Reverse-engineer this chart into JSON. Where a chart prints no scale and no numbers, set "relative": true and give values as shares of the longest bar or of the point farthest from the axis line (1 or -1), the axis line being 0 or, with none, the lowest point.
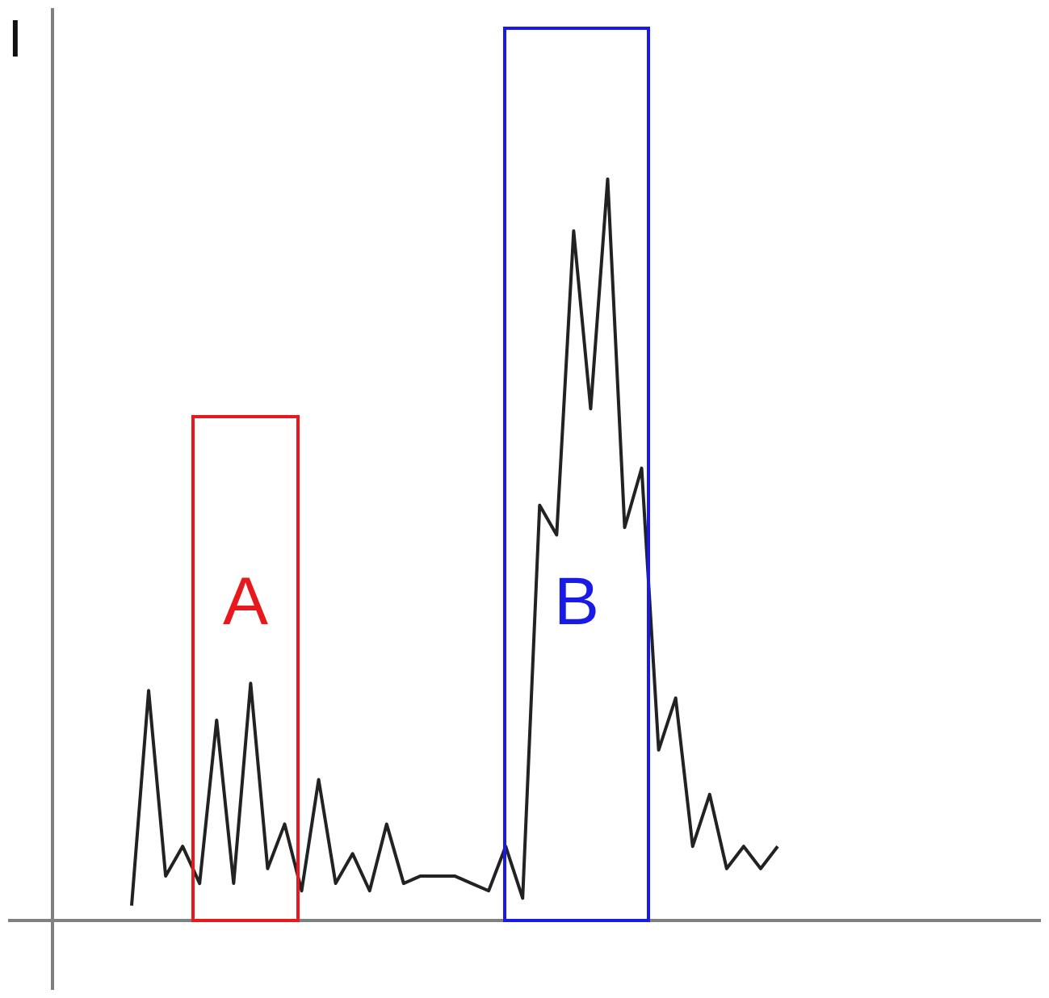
{
  "chart_data": {
    "type": "line",
    "ylabel": "I",
    "relative": true,
    "legend": false,
    "marker": "none",
    "tick_labels": false,
    "categories": [
      null,
      null,
      null,
      null,
      null,
      null,
      null,
      null,
      null,
      null,
      null,
      null,
      null,
      null,
      null,
      null,
      null,
      null,
      null,
      null,
      null,
      null,
      null,
      null,
      null,
      null,
      null,
      null,
      null,
      null,
      null,
      null,
      null,
      null,
      null,
      null,
      null,
      null,
      null
    ],
    "series": [
      {
        "color": "#222222",
        "values": [
          0.02,
          0.31,
          0.06,
          0.1,
          0.05,
          0.27,
          0.05,
          0.32,
          0.07,
          0.13,
          0.04,
          0.19,
          0.05,
          0.09,
          0.04,
          0.13,
          0.05,
          0.06,
          0.06,
          0.06,
          0.05,
          0.04,
          0.1,
          0.03,
          0.56,
          0.52,
          0.93,
          0.69,
          1,
          0.53,
          0.61,
          0.23,
          0.3,
          0.1,
          0.17,
          0.07,
          0.1,
          0.07,
          0.1
        ]
      }
    ],
    "annotations": [
      "A",
      "B"
    ]
  }
}
